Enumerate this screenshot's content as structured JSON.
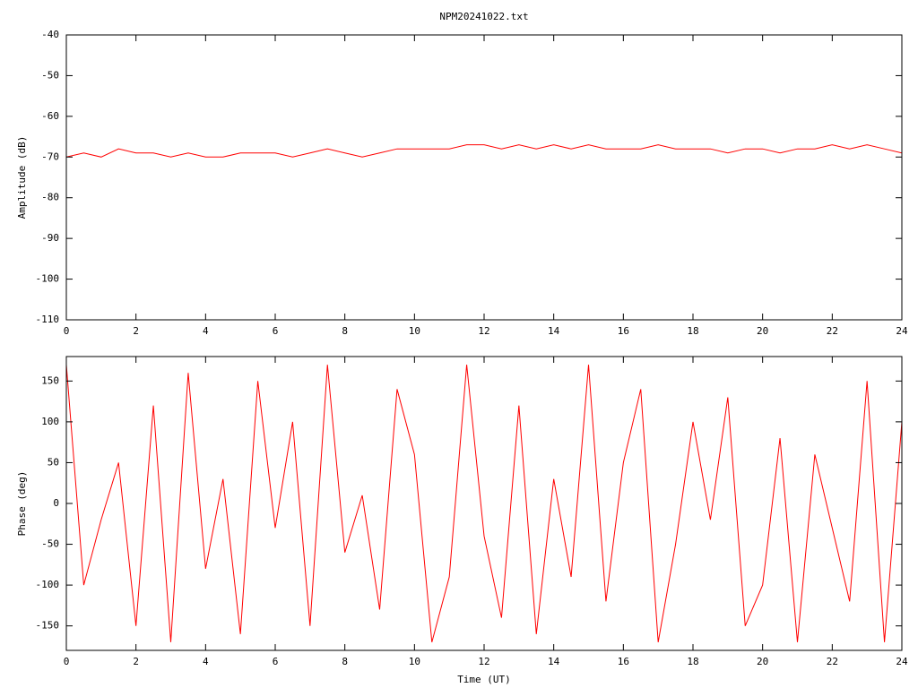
{
  "chart_data": [
    {
      "type": "line",
      "title": "NPM20241022.txt",
      "ylabel": "Amplitude (dB)",
      "x": [
        0,
        0.5,
        1,
        1.5,
        2,
        2.5,
        3,
        3.5,
        4,
        4.5,
        5,
        5.5,
        6,
        6.5,
        7,
        7.5,
        8,
        8.5,
        9,
        9.5,
        10,
        10.5,
        11,
        11.5,
        12,
        12.5,
        13,
        13.5,
        14,
        14.5,
        15,
        15.5,
        16,
        16.5,
        17,
        17.5,
        18,
        18.5,
        19,
        19.5,
        20,
        20.5,
        21,
        21.5,
        22,
        22.5,
        23,
        23.5,
        24
      ],
      "series": [
        {
          "color": "#ff0000",
          "values": [
            -70,
            -69,
            -70,
            -68,
            -69,
            -69,
            -70,
            -69,
            -70,
            -70,
            -69,
            -69,
            -69,
            -70,
            -69,
            -68,
            -69,
            -70,
            -69,
            -68,
            -68,
            -68,
            -68,
            -67,
            -67,
            -68,
            -67,
            -68,
            -67,
            -68,
            -67,
            -68,
            -68,
            -68,
            -67,
            -68,
            -68,
            -68,
            -69,
            -68,
            -68,
            -69,
            -68,
            -68,
            -67,
            -68,
            -67,
            -68,
            -69
          ]
        }
      ],
      "xlim": [
        0,
        24
      ],
      "xticks": [
        0,
        2,
        4,
        6,
        8,
        10,
        12,
        14,
        16,
        18,
        20,
        22,
        24
      ],
      "ylim": [
        -110,
        -40
      ],
      "yticks": [
        -110,
        -100,
        -90,
        -80,
        -70,
        -60,
        -50,
        -40
      ],
      "grid": false
    },
    {
      "type": "line",
      "xlabel": "Time (UT)",
      "ylabel": "Phase (deg)",
      "x": [
        0,
        0.5,
        1,
        1.5,
        2,
        2.5,
        3,
        3.5,
        4,
        4.5,
        5,
        5.5,
        6,
        6.5,
        7,
        7.5,
        8,
        8.5,
        9,
        9.5,
        10,
        10.5,
        11,
        11.5,
        12,
        12.5,
        13,
        13.5,
        14,
        14.5,
        15,
        15.5,
        16,
        16.5,
        17,
        17.5,
        18,
        18.5,
        19,
        19.5,
        20,
        20.5,
        21,
        21.5,
        22,
        22.5,
        23,
        23.5,
        24
      ],
      "series": [
        {
          "color": "#ff0000",
          "values": [
            170,
            -100,
            -20,
            50,
            -150,
            120,
            -170,
            160,
            -80,
            30,
            -160,
            150,
            -30,
            100,
            -150,
            170,
            -60,
            10,
            -130,
            140,
            60,
            -170,
            -90,
            170,
            -40,
            -140,
            120,
            -160,
            30,
            -90,
            170,
            -120,
            50,
            140,
            -170,
            -50,
            100,
            -20,
            130,
            -150,
            -100,
            80,
            -170,
            60,
            -30,
            -120,
            150,
            -170,
            100
          ]
        }
      ],
      "xlim": [
        0,
        24
      ],
      "xticks": [
        0,
        2,
        4,
        6,
        8,
        10,
        12,
        14,
        16,
        18,
        20,
        22,
        24
      ],
      "ylim": [
        -180,
        180
      ],
      "yticks": [
        -150,
        -100,
        -50,
        0,
        50,
        100,
        150
      ],
      "grid": false
    }
  ]
}
